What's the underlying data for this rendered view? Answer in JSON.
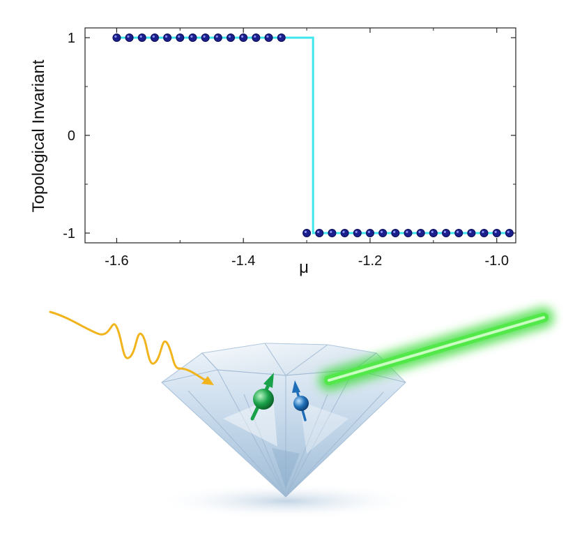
{
  "chart_data": {
    "type": "line",
    "xlabel": "μ",
    "ylabel": "Topological Invariant",
    "xlim": [
      -1.65,
      -0.97
    ],
    "ylim": [
      -1.1,
      1.1
    ],
    "xticks": [
      -1.6,
      -1.4,
      -1.2,
      -1.0
    ],
    "xtick_labels": [
      "-1.6",
      "-1.4",
      "-1.2",
      "-1.0"
    ],
    "yticks": [
      1,
      0,
      -1
    ],
    "ytick_labels": [
      "1",
      "0",
      "-1"
    ],
    "grid": false,
    "series": [
      {
        "style": "line",
        "color": "#3ee6ee",
        "x": [
          -1.6,
          -1.29,
          -1.29,
          -0.98
        ],
        "y": [
          1,
          1,
          -1,
          -1
        ]
      },
      {
        "style": "markers",
        "color": "#1a1f8c",
        "x": [
          -1.6,
          -1.58,
          -1.56,
          -1.54,
          -1.52,
          -1.5,
          -1.48,
          -1.46,
          -1.44,
          -1.42,
          -1.4,
          -1.38,
          -1.36,
          -1.34,
          -1.3,
          -1.28,
          -1.26,
          -1.24,
          -1.22,
          -1.2,
          -1.18,
          -1.16,
          -1.14,
          -1.12,
          -1.1,
          -1.08,
          -1.06,
          -1.04,
          -1.02,
          -1.0,
          -0.98
        ],
        "y": [
          1,
          1,
          1,
          1,
          1,
          1,
          1,
          1,
          1,
          1,
          1,
          1,
          1,
          1,
          -1,
          -1,
          -1,
          -1,
          -1,
          -1,
          -1,
          -1,
          -1,
          -1,
          -1,
          -1,
          -1,
          -1,
          -1,
          -1,
          -1
        ]
      }
    ]
  },
  "illustration": {
    "photon_color": "#f2b41c",
    "laser_color": "#3ddc3a",
    "spin_green_color": "#1aa24a",
    "spin_blue_color": "#1f6fb8"
  }
}
